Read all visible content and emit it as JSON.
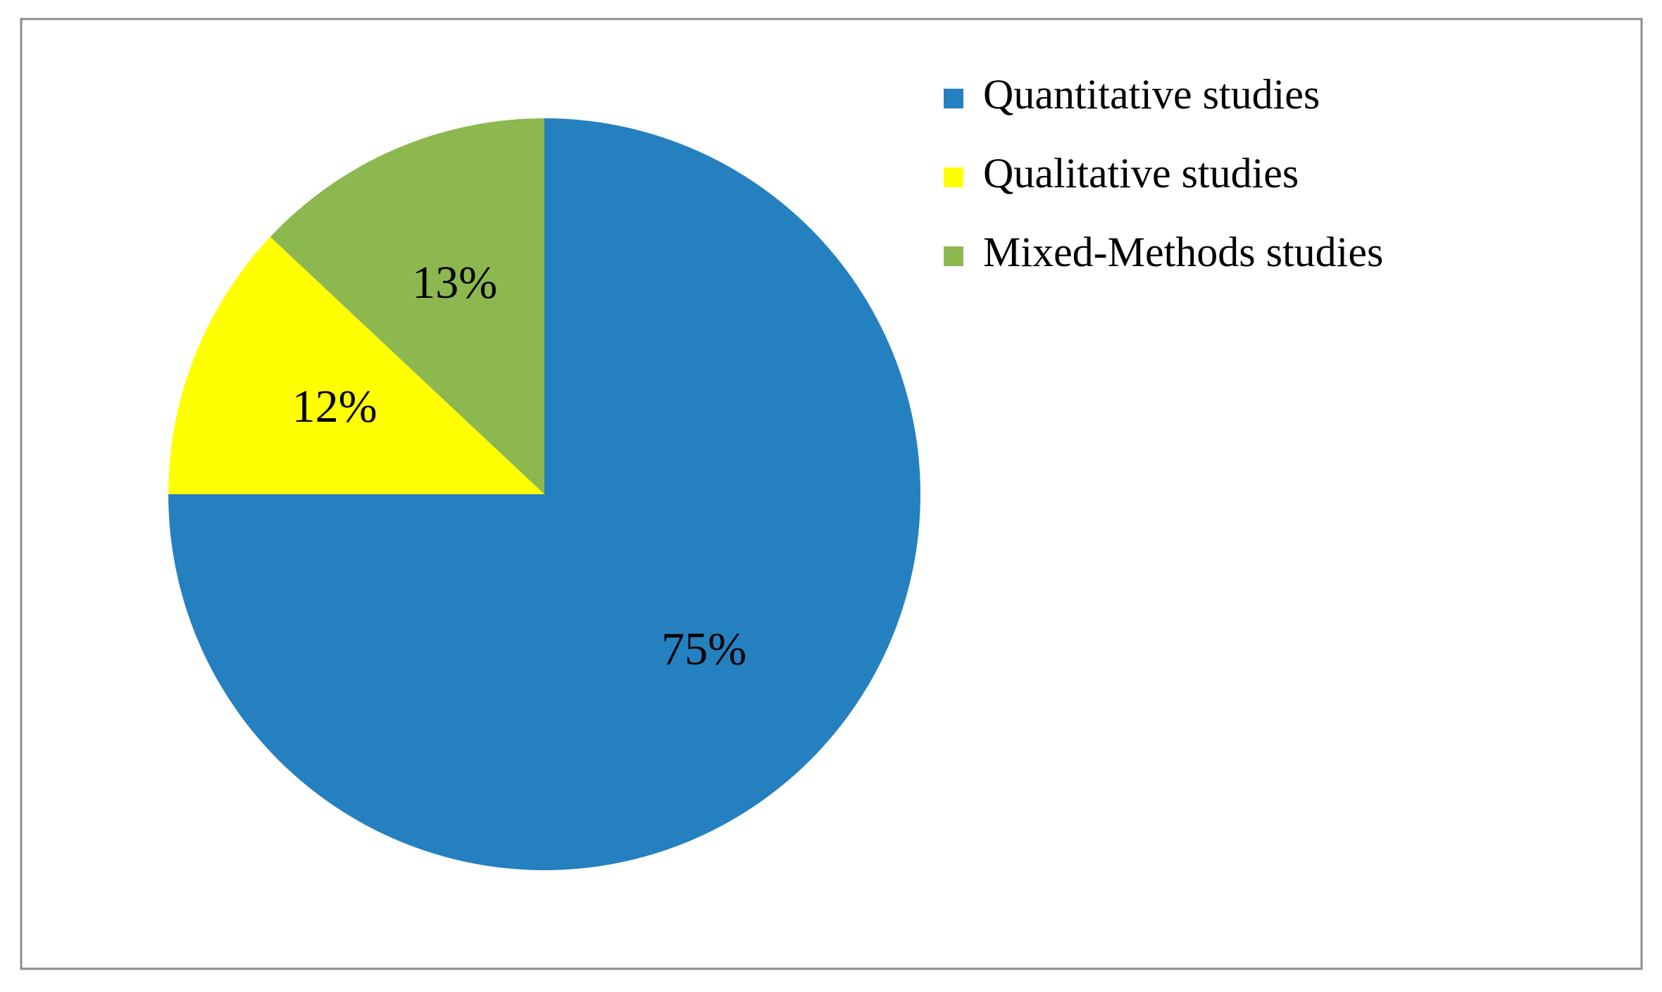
{
  "chart_data": {
    "type": "pie",
    "categories": [
      "Quantitative studies",
      "Qualitative studies",
      "Mixed-Methods studies"
    ],
    "values": [
      75,
      12,
      13
    ],
    "value_labels": [
      "75%",
      "12%",
      "13%"
    ],
    "colors": [
      "#2580c0",
      "#ffff00",
      "#8db84f"
    ],
    "legend": "top-right"
  }
}
